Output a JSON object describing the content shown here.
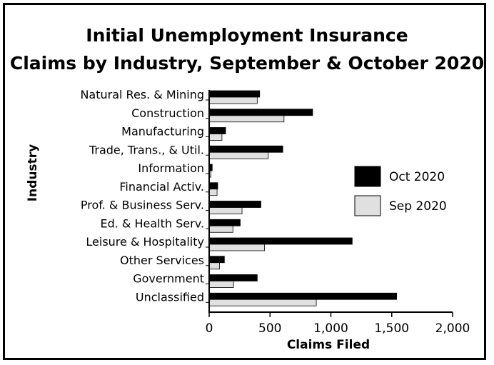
{
  "chart_data": {
    "type": "bar",
    "orientation": "horizontal",
    "title": [
      "Initial Unemployment Insurance",
      "Claims by Industry, September & October 2020"
    ],
    "xlabel": "Claims Filed",
    "ylabel": "Industry",
    "xlim": [
      0,
      2000
    ],
    "xticks": [
      0,
      500,
      1000,
      1500,
      2000
    ],
    "xtick_labels": [
      "0",
      "500",
      "1,000",
      "1,500",
      "2,000"
    ],
    "grid": false,
    "legend_position": "right",
    "categories": [
      "Natural Res. & Mining",
      "Construction",
      "Manufacturing",
      "Trade, Trans., & Util.",
      "Information",
      "Financial Activ.",
      "Prof. & Business Serv.",
      "Ed. & Health Serv.",
      "Leisure & Hospitality",
      "Other Services",
      "Government",
      "Unclassified"
    ],
    "series": [
      {
        "name": "Oct 2020",
        "color": "#000000",
        "values": [
          415,
          850,
          135,
          605,
          25,
          70,
          425,
          255,
          1175,
          125,
          395,
          1540
        ]
      },
      {
        "name": "Sep 2020",
        "color": "#e0e0e0",
        "values": [
          395,
          615,
          105,
          485,
          15,
          65,
          270,
          195,
          455,
          85,
          200,
          880
        ]
      }
    ]
  }
}
